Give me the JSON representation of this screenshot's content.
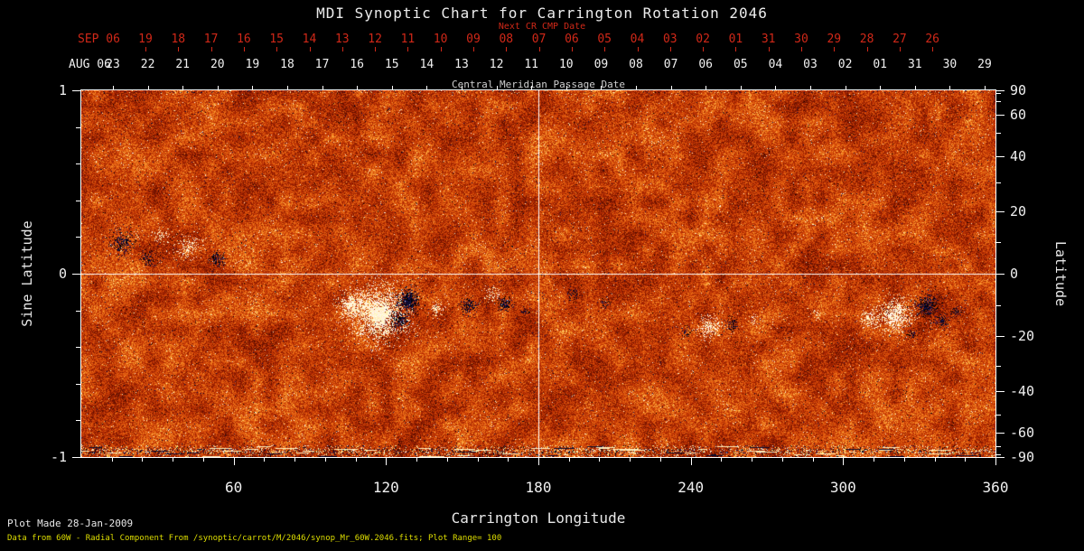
{
  "title": "MDI Synoptic Chart for Carrington Rotation 2046",
  "colors": {
    "background": "#000000",
    "foreground": "#f0f0f0",
    "red_axis": "#d02818",
    "footer_note": "#dede00",
    "grid": "#ffffff"
  },
  "top_axis": {
    "next_cr_label": "Next CR CMP Date",
    "red_month": "SEP 06",
    "red_days": [
      "19",
      "18",
      "17",
      "16",
      "15",
      "14",
      "13",
      "12",
      "11",
      "10",
      "09",
      "08",
      "07",
      "06",
      "05",
      "04",
      "03",
      "02",
      "01",
      "31",
      "30",
      "29",
      "28",
      "27",
      "26"
    ],
    "white_month": "AUG 06",
    "white_days": [
      "23",
      "22",
      "21",
      "20",
      "19",
      "18",
      "17",
      "16",
      "15",
      "14",
      "13",
      "12",
      "11",
      "10",
      "09",
      "08",
      "07",
      "06",
      "05",
      "04",
      "03",
      "02",
      "01",
      "31",
      "30",
      "29"
    ],
    "cmp_label": "Central Meridian Passage Date"
  },
  "x_axis": {
    "label": "Carrington Longitude",
    "ticks": [
      60,
      120,
      180,
      240,
      300,
      360
    ]
  },
  "y_axis_left": {
    "label": "Sine Latitude",
    "ticks": [
      1,
      0,
      -1
    ]
  },
  "y_axis_right": {
    "label": "Latitude",
    "ticks": [
      90,
      60,
      40,
      20,
      0,
      -20,
      -40,
      -60,
      -90
    ]
  },
  "footer": {
    "line1": "Plot Made 28-Jan-2009",
    "line2": "Data from 60W - Radial Component From /synoptic/carrot/M/2046/synop_Mr_60W.2046.fits; Plot Range= 100"
  },
  "chart_data": {
    "type": "heatmap",
    "title": "MDI Synoptic Chart for Carrington Rotation 2046",
    "xlabel": "Carrington Longitude",
    "ylabel_left": "Sine Latitude",
    "ylabel_right": "Latitude",
    "x_range": [
      0,
      360
    ],
    "x_ticks": [
      60,
      120,
      180,
      240,
      300,
      360
    ],
    "y_left_range": [
      -1,
      1
    ],
    "y_left_ticks": [
      1,
      0,
      -1
    ],
    "y_right_ticks": [
      90,
      60,
      40,
      20,
      0,
      -20,
      -40,
      -60,
      -90
    ],
    "grid_lines": {
      "vertical_at_longitude": 180,
      "horizontal_at_sine_latitude": 0
    },
    "plot_range": 100,
    "colormap": "solar magnetogram: background red/orange noise, positive flux = white/yellow, negative flux = dark blue/black",
    "cmp_date_axis": {
      "month_start": "AUG 06",
      "days": [
        "23",
        "22",
        "21",
        "20",
        "19",
        "18",
        "17",
        "16",
        "15",
        "14",
        "13",
        "12",
        "11",
        "10",
        "09",
        "08",
        "07",
        "06",
        "05",
        "04",
        "03",
        "02",
        "01",
        "31",
        "30",
        "29"
      ]
    },
    "next_cr_cmp_date_axis": {
      "month_start": "SEP 06",
      "days": [
        "19",
        "18",
        "17",
        "16",
        "15",
        "14",
        "13",
        "12",
        "11",
        "10",
        "09",
        "08",
        "07",
        "06",
        "05",
        "04",
        "03",
        "02",
        "01",
        "31",
        "30",
        "29",
        "28",
        "27",
        "26"
      ]
    },
    "active_regions": [
      {
        "longitude": 115,
        "sine_latitude": -0.22,
        "polarity": "bipolar",
        "note": "large bright positive region with dark negative core"
      },
      {
        "longitude": 165,
        "sine_latitude": -0.17,
        "polarity": "negative",
        "note": "small dark flux patch"
      },
      {
        "longitude": 248,
        "sine_latitude": -0.29,
        "polarity": "bipolar",
        "note": "moderate active region"
      },
      {
        "longitude": 322,
        "sine_latitude": -0.22,
        "polarity": "bipolar",
        "note": "bright positive region beside large dark negative patch"
      },
      {
        "longitude": 18,
        "sine_latitude": 0.17,
        "polarity": "negative",
        "note": "scattered dark flux near left edge with small bright patch"
      }
    ]
  }
}
